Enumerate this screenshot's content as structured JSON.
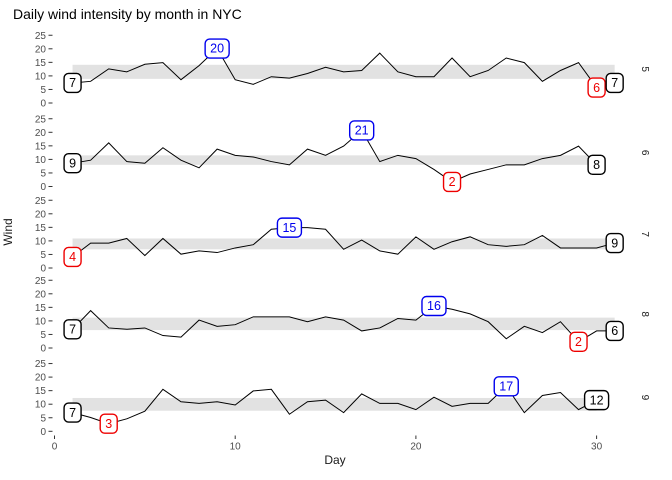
{
  "title": "Daily wind intensity by month in NYC",
  "x_axis_title": "Day",
  "y_axis_title": "Wind",
  "colors": {
    "line": "#000000",
    "band": "#e2e2e2",
    "max_label": "#0000ee",
    "min_label": "#ee0000",
    "end_label": "#000000",
    "label_fill": "#ffffff",
    "axis_text": "#4d4d4d",
    "tick": "#333333",
    "strip_text": "#1a1a1a"
  },
  "chart_data": {
    "type": "line",
    "xlabel": "Day",
    "ylabel": "Wind",
    "xlim": [
      0,
      31
    ],
    "ylim": [
      0,
      25
    ],
    "x_ticks": [
      0,
      10,
      20,
      30
    ],
    "y_ticks": [
      0,
      5,
      10,
      15,
      20,
      25
    ],
    "grid": "off",
    "strip_position": "right",
    "facets": [
      {
        "month": "5",
        "wind": [
          7.4,
          8.0,
          12.6,
          11.5,
          14.3,
          14.9,
          8.6,
          13.8,
          20.1,
          8.6,
          6.9,
          9.7,
          9.2,
          10.9,
          13.2,
          11.5,
          12.0,
          18.4,
          11.5,
          9.7,
          9.7,
          16.6,
          9.7,
          12.0,
          16.6,
          14.9,
          8.0,
          12.0,
          14.9,
          5.7,
          7.4
        ],
        "band": [
          8.9,
          14.1
        ],
        "labels": [
          {
            "role": "first",
            "day": 1,
            "value": 7.4,
            "text": "7"
          },
          {
            "role": "max",
            "day": 9,
            "value": 20.1,
            "text": "20"
          },
          {
            "role": "min",
            "day": 30,
            "value": 5.7,
            "text": "6"
          },
          {
            "role": "last",
            "day": 31,
            "value": 7.4,
            "text": "7"
          }
        ]
      },
      {
        "month": "6",
        "wind": [
          8.6,
          9.7,
          16.1,
          9.2,
          8.6,
          14.3,
          9.7,
          6.9,
          13.8,
          11.5,
          10.9,
          9.2,
          8.0,
          13.8,
          11.5,
          14.9,
          20.7,
          9.2,
          11.5,
          10.3,
          6.3,
          1.7,
          4.6,
          6.3,
          8.0,
          8.0,
          10.3,
          11.5,
          14.9,
          8.0
        ],
        "band": [
          8.0,
          11.5
        ],
        "labels": [
          {
            "role": "first",
            "day": 1,
            "value": 8.6,
            "text": "9"
          },
          {
            "role": "max",
            "day": 17,
            "value": 20.7,
            "text": "21"
          },
          {
            "role": "min",
            "day": 22,
            "value": 1.7,
            "text": "2"
          },
          {
            "role": "last",
            "day": 30,
            "value": 8.0,
            "text": "8"
          }
        ]
      },
      {
        "month": "7",
        "wind": [
          4.1,
          9.2,
          9.2,
          10.9,
          4.6,
          10.9,
          5.1,
          6.3,
          5.7,
          7.4,
          8.6,
          14.3,
          14.9,
          14.9,
          14.3,
          6.9,
          10.3,
          6.3,
          5.1,
          11.5,
          6.9,
          9.7,
          11.5,
          8.6,
          8.0,
          8.6,
          12.0,
          7.4,
          7.4,
          7.4,
          9.2
        ],
        "band": [
          6.9,
          10.9
        ],
        "labels": [
          {
            "role": "min",
            "day": 1,
            "value": 4.1,
            "text": "4"
          },
          {
            "role": "max",
            "day": 13,
            "value": 14.9,
            "text": "15"
          },
          {
            "role": "last",
            "day": 31,
            "value": 9.2,
            "text": "9"
          }
        ]
      },
      {
        "month": "8",
        "wind": [
          6.9,
          13.8,
          7.4,
          6.9,
          7.4,
          4.6,
          4.0,
          10.3,
          8.0,
          8.6,
          11.5,
          11.5,
          11.5,
          9.7,
          11.5,
          10.3,
          6.3,
          7.4,
          10.9,
          10.3,
          15.5,
          14.3,
          12.6,
          9.7,
          3.4,
          8.0,
          5.7,
          9.7,
          2.3,
          6.3,
          6.3
        ],
        "band": [
          6.6,
          11.2
        ],
        "labels": [
          {
            "role": "first",
            "day": 1,
            "value": 6.9,
            "text": "7"
          },
          {
            "role": "max",
            "day": 21,
            "value": 15.5,
            "text": "16"
          },
          {
            "role": "min",
            "day": 29,
            "value": 2.3,
            "text": "2"
          },
          {
            "role": "last",
            "day": 31,
            "value": 6.3,
            "text": "6"
          }
        ]
      },
      {
        "month": "9",
        "wind": [
          6.9,
          5.1,
          2.8,
          4.6,
          7.4,
          15.5,
          10.9,
          10.3,
          10.9,
          9.7,
          14.9,
          15.5,
          6.3,
          10.9,
          11.5,
          6.9,
          13.8,
          10.3,
          10.3,
          8.0,
          12.6,
          9.2,
          10.3,
          10.3,
          16.6,
          6.9,
          13.2,
          14.3,
          8.0,
          11.5
        ],
        "band": [
          7.6,
          12.3
        ],
        "labels": [
          {
            "role": "first",
            "day": 1,
            "value": 6.9,
            "text": "7"
          },
          {
            "role": "min",
            "day": 3,
            "value": 2.8,
            "text": "3"
          },
          {
            "role": "max",
            "day": 25,
            "value": 16.6,
            "text": "17"
          },
          {
            "role": "last",
            "day": 30,
            "value": 11.5,
            "text": "12"
          }
        ]
      }
    ]
  }
}
